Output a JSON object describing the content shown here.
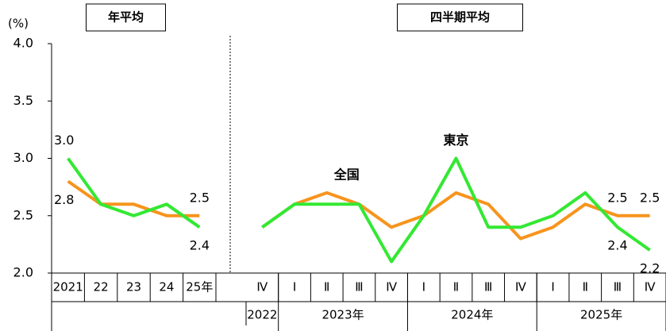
{
  "y_unit": "(%)",
  "chart_data": [
    {
      "type": "line",
      "title": "年平均",
      "categories": [
        "2021",
        "22",
        "23",
        "24",
        "25年"
      ],
      "series": [
        {
          "color": "#f7941d",
          "values": [
            2.8,
            2.6,
            2.6,
            2.5,
            2.5
          ],
          "value_labels": [
            "2.8",
            null,
            null,
            null,
            "2.5"
          ]
        },
        {
          "color": "#33e833",
          "values": [
            3.0,
            2.6,
            2.5,
            2.6,
            2.4
          ],
          "value_labels": [
            "3.0",
            null,
            null,
            null,
            "2.4"
          ]
        }
      ],
      "ylim": [
        2.0,
        4.0
      ],
      "yticks": [
        {
          "value": 2.0,
          "label": "2.0"
        },
        {
          "value": 2.5,
          "label": "2.5"
        },
        {
          "value": 3.0,
          "label": "3.0"
        },
        {
          "value": 3.5,
          "label": "3.5"
        },
        {
          "value": 4.0,
          "label": "4.0"
        }
      ]
    },
    {
      "type": "line",
      "title": "四半期平均",
      "categories": [
        "Ⅳ",
        "Ⅰ",
        "Ⅱ",
        "Ⅲ",
        "Ⅳ",
        "Ⅰ",
        "Ⅱ",
        "Ⅲ",
        "Ⅳ",
        "Ⅰ",
        "Ⅱ",
        "Ⅲ",
        "Ⅳ"
      ],
      "groups": [
        {
          "label": "2022",
          "size": 1
        },
        {
          "label": "2023年",
          "size": 4
        },
        {
          "label": "2024年",
          "size": 4
        },
        {
          "label": "2025年",
          "size": 4
        }
      ],
      "series": [
        {
          "name": "全国",
          "color": "#f7941d",
          "values": [
            2.4,
            2.6,
            2.7,
            2.6,
            2.4,
            2.5,
            2.7,
            2.6,
            2.3,
            2.4,
            2.6,
            2.5,
            2.5
          ],
          "value_labels": [
            null,
            null,
            null,
            null,
            null,
            null,
            null,
            null,
            null,
            null,
            null,
            "2.5",
            "2.5"
          ]
        },
        {
          "name": "東京",
          "color": "#33e833",
          "values": [
            2.4,
            2.6,
            2.6,
            2.6,
            2.1,
            2.5,
            3.0,
            2.4,
            2.4,
            2.5,
            2.7,
            2.4,
            2.2
          ],
          "value_labels": [
            null,
            null,
            null,
            null,
            null,
            null,
            null,
            null,
            null,
            null,
            null,
            "2.4",
            "2.2"
          ]
        }
      ],
      "ylim": [
        2.0,
        4.0
      ]
    }
  ]
}
